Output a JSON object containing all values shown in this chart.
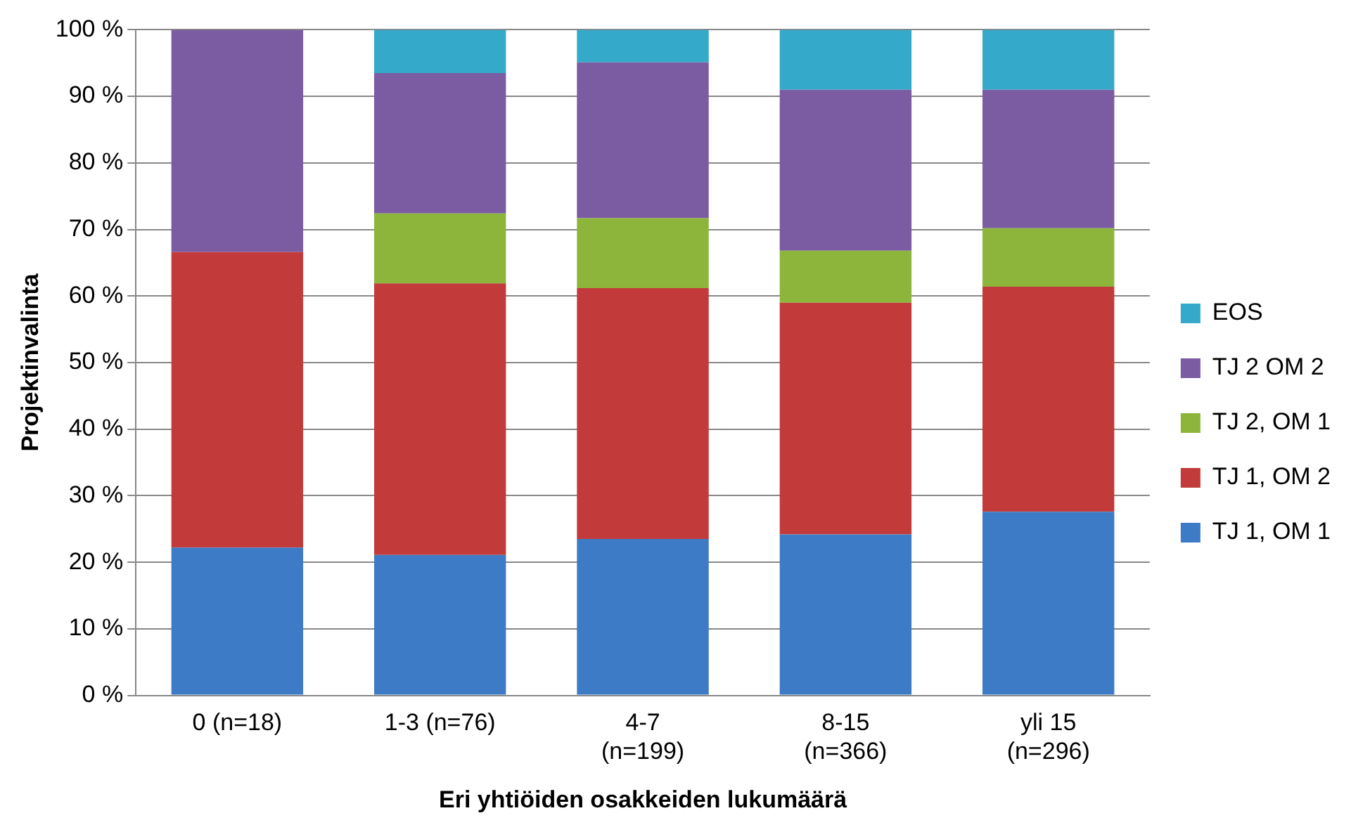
{
  "chart_data": {
    "type": "bar",
    "stacked": true,
    "xlabel": "Eri yhtiöiden osakkeiden lukumäärä",
    "ylabel": "Projektinvalinta",
    "categories": [
      "0 (n=18)",
      "1-3 (n=76)",
      "4-7 (n=199)",
      "8-15 (n=366)",
      "yli 15 (n=296)"
    ],
    "series": [
      {
        "name": "TJ 1, OM 1",
        "color": "#3d7bc6",
        "values": [
          22.2,
          21.1,
          23.5,
          24.2,
          27.6
        ]
      },
      {
        "name": "TJ 1, OM 2",
        "color": "#c23b3a",
        "values": [
          44.4,
          40.8,
          37.7,
          34.8,
          33.8
        ]
      },
      {
        "name": "TJ 2, OM 1",
        "color": "#8db53c",
        "values": [
          0,
          10.5,
          10.5,
          7.8,
          8.8
        ]
      },
      {
        "name": "TJ 2 OM 2",
        "color": "#7b5ba2",
        "values": [
          33.4,
          21.1,
          23.4,
          24.2,
          20.8
        ]
      },
      {
        "name": "EOS",
        "color": "#35a9c9",
        "values": [
          0,
          6.5,
          4.9,
          9.0,
          9.0
        ]
      }
    ],
    "ylim": [
      0,
      100
    ],
    "yticks": [
      {
        "value": 0,
        "label": "0 %"
      },
      {
        "value": 10,
        "label": "10 %"
      },
      {
        "value": 20,
        "label": "20 %"
      },
      {
        "value": 30,
        "label": "30 %"
      },
      {
        "value": 40,
        "label": "40 %"
      },
      {
        "value": 50,
        "label": "50 %"
      },
      {
        "value": 60,
        "label": "60 %"
      },
      {
        "value": 70,
        "label": "70 %"
      },
      {
        "value": 80,
        "label": "80 %"
      },
      {
        "value": 90,
        "label": "90 %"
      },
      {
        "value": 100,
        "label": "100 %"
      }
    ],
    "grid": "y",
    "legend": "right"
  }
}
